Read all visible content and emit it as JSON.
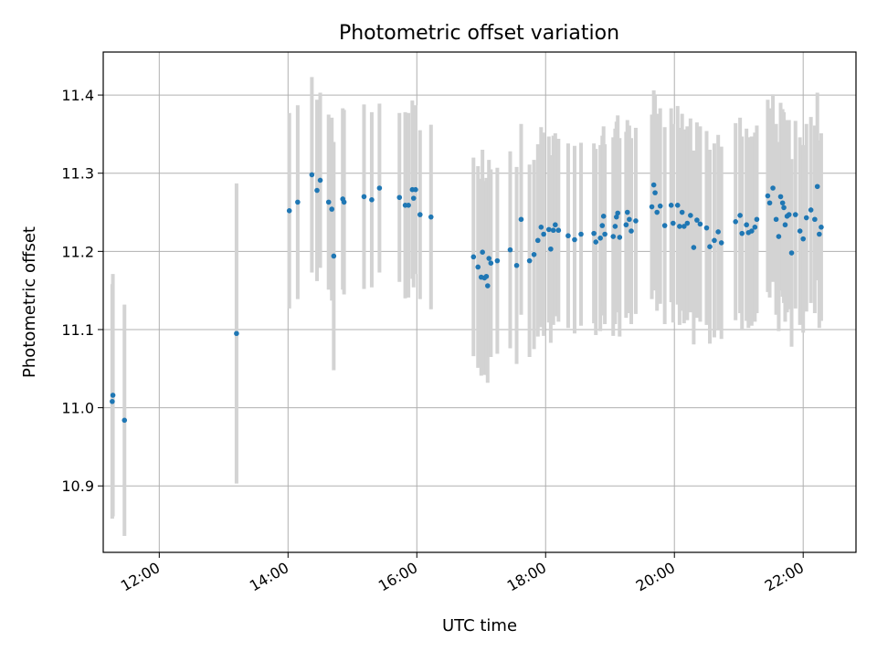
{
  "chart_data": {
    "type": "scatter",
    "title": "Photometric offset variation",
    "xlabel": "UTC time",
    "ylabel": "Photometric offset",
    "xlim": [
      11.13,
      22.82
    ],
    "ylim": [
      10.815,
      11.455
    ],
    "x_ticks": [
      {
        "value": 12,
        "label": "12:00"
      },
      {
        "value": 14,
        "label": "14:00"
      },
      {
        "value": 16,
        "label": "16:00"
      },
      {
        "value": 18,
        "label": "18:00"
      },
      {
        "value": 20,
        "label": "20:00"
      },
      {
        "value": 22,
        "label": "22:00"
      }
    ],
    "y_ticks": [
      {
        "value": 10.9,
        "label": "10.9"
      },
      {
        "value": 11.0,
        "label": "11.0"
      },
      {
        "value": 11.1,
        "label": "11.1"
      },
      {
        "value": 11.2,
        "label": "11.2"
      },
      {
        "value": 11.3,
        "label": "11.3"
      },
      {
        "value": 11.4,
        "label": "11.4"
      }
    ],
    "grid": true,
    "colors": {
      "point": "#1f77b4",
      "errorbar": "#d3d3d3",
      "grid": "#b0b0b0"
    },
    "points": [
      [
        11.27,
        11.008,
        0.15
      ],
      [
        11.28,
        11.016,
        0.155
      ],
      [
        11.46,
        10.984,
        0.148
      ],
      [
        13.2,
        11.095,
        0.192
      ],
      [
        14.02,
        11.252,
        0.125
      ],
      [
        14.15,
        11.263,
        0.124
      ],
      [
        14.37,
        11.298,
        0.125
      ],
      [
        14.45,
        11.278,
        0.116
      ],
      [
        14.5,
        11.291,
        0.112
      ],
      [
        14.63,
        11.263,
        0.112
      ],
      [
        14.68,
        11.254,
        0.117
      ],
      [
        14.71,
        11.194,
        0.146
      ],
      [
        14.85,
        11.267,
        0.116
      ],
      [
        14.87,
        11.263,
        0.118
      ],
      [
        15.18,
        11.27,
        0.118
      ],
      [
        15.3,
        11.266,
        0.112
      ],
      [
        15.42,
        11.281,
        0.108
      ],
      [
        15.73,
        11.269,
        0.108
      ],
      [
        15.82,
        11.259,
        0.119
      ],
      [
        15.87,
        11.259,
        0.118
      ],
      [
        15.93,
        11.279,
        0.114
      ],
      [
        15.95,
        11.268,
        0.114
      ],
      [
        15.98,
        11.279,
        0.108
      ],
      [
        16.05,
        11.247,
        0.108
      ],
      [
        16.22,
        11.244,
        0.118
      ],
      [
        16.88,
        11.193,
        0.127
      ],
      [
        16.95,
        11.18,
        0.129
      ],
      [
        17.0,
        11.167,
        0.126
      ],
      [
        17.02,
        11.199,
        0.131
      ],
      [
        17.05,
        11.166,
        0.124
      ],
      [
        17.08,
        11.168,
        0.126
      ],
      [
        17.1,
        11.156,
        0.124
      ],
      [
        17.12,
        11.191,
        0.126
      ],
      [
        17.15,
        11.185,
        0.12
      ],
      [
        17.25,
        11.188,
        0.119
      ],
      [
        17.45,
        11.202,
        0.126
      ],
      [
        17.55,
        11.182,
        0.126
      ],
      [
        17.62,
        11.241,
        0.122
      ],
      [
        17.75,
        11.188,
        0.123
      ],
      [
        17.82,
        11.196,
        0.121
      ],
      [
        17.88,
        11.214,
        0.123
      ],
      [
        17.93,
        11.231,
        0.128
      ],
      [
        17.97,
        11.222,
        0.13
      ],
      [
        18.05,
        11.228,
        0.119
      ],
      [
        18.08,
        11.203,
        0.12
      ],
      [
        18.12,
        11.227,
        0.121
      ],
      [
        18.15,
        11.234,
        0.117
      ],
      [
        18.2,
        11.227,
        0.117
      ],
      [
        18.35,
        11.22,
        0.118
      ],
      [
        18.45,
        11.215,
        0.12
      ],
      [
        18.55,
        11.222,
        0.117
      ],
      [
        18.75,
        11.223,
        0.115
      ],
      [
        18.78,
        11.212,
        0.119
      ],
      [
        18.85,
        11.217,
        0.119
      ],
      [
        18.88,
        11.233,
        0.115
      ],
      [
        18.9,
        11.245,
        0.115
      ],
      [
        18.92,
        11.222,
        0.115
      ],
      [
        19.05,
        11.219,
        0.127
      ],
      [
        19.08,
        11.232,
        0.125
      ],
      [
        19.1,
        11.244,
        0.122
      ],
      [
        19.12,
        11.249,
        0.125
      ],
      [
        19.15,
        11.218,
        0.127
      ],
      [
        19.25,
        11.234,
        0.119
      ],
      [
        19.27,
        11.25,
        0.118
      ],
      [
        19.3,
        11.241,
        0.12
      ],
      [
        19.33,
        11.226,
        0.119
      ],
      [
        19.4,
        11.239,
        0.119
      ],
      [
        19.65,
        11.257,
        0.118
      ],
      [
        19.68,
        11.285,
        0.121
      ],
      [
        19.7,
        11.275,
        0.125
      ],
      [
        19.73,
        11.25,
        0.126
      ],
      [
        19.78,
        11.258,
        0.125
      ],
      [
        19.85,
        11.233,
        0.126
      ],
      [
        19.95,
        11.259,
        0.124
      ],
      [
        19.98,
        11.236,
        0.127
      ],
      [
        20.05,
        11.259,
        0.127
      ],
      [
        20.08,
        11.232,
        0.126
      ],
      [
        20.12,
        11.25,
        0.126
      ],
      [
        20.15,
        11.232,
        0.124
      ],
      [
        20.2,
        11.236,
        0.124
      ],
      [
        20.25,
        11.246,
        0.124
      ],
      [
        20.3,
        11.205,
        0.124
      ],
      [
        20.35,
        11.24,
        0.125
      ],
      [
        20.4,
        11.235,
        0.125
      ],
      [
        20.5,
        11.23,
        0.124
      ],
      [
        20.55,
        11.206,
        0.124
      ],
      [
        20.62,
        11.214,
        0.124
      ],
      [
        20.68,
        11.225,
        0.124
      ],
      [
        20.73,
        11.211,
        0.123
      ],
      [
        20.95,
        11.238,
        0.126
      ],
      [
        21.02,
        11.246,
        0.125
      ],
      [
        21.05,
        11.223,
        0.124
      ],
      [
        21.12,
        11.234,
        0.123
      ],
      [
        21.15,
        11.224,
        0.122
      ],
      [
        21.2,
        11.226,
        0.121
      ],
      [
        21.25,
        11.231,
        0.121
      ],
      [
        21.28,
        11.241,
        0.12
      ],
      [
        21.45,
        11.271,
        0.123
      ],
      [
        21.48,
        11.262,
        0.121
      ],
      [
        21.53,
        11.281,
        0.12
      ],
      [
        21.58,
        11.241,
        0.122
      ],
      [
        21.62,
        11.219,
        0.121
      ],
      [
        21.65,
        11.27,
        0.12
      ],
      [
        21.68,
        11.262,
        0.12
      ],
      [
        21.7,
        11.256,
        0.122
      ],
      [
        21.72,
        11.234,
        0.124
      ],
      [
        21.75,
        11.245,
        0.123
      ],
      [
        21.78,
        11.247,
        0.121
      ],
      [
        21.82,
        11.198,
        0.12
      ],
      [
        21.88,
        11.247,
        0.12
      ],
      [
        21.95,
        11.226,
        0.12
      ],
      [
        22.0,
        11.216,
        0.12
      ],
      [
        22.05,
        11.243,
        0.12
      ],
      [
        22.12,
        11.253,
        0.119
      ],
      [
        22.18,
        11.241,
        0.12
      ],
      [
        22.22,
        11.283,
        0.12
      ],
      [
        22.25,
        11.222,
        0.12
      ],
      [
        22.28,
        11.231,
        0.12
      ]
    ]
  }
}
